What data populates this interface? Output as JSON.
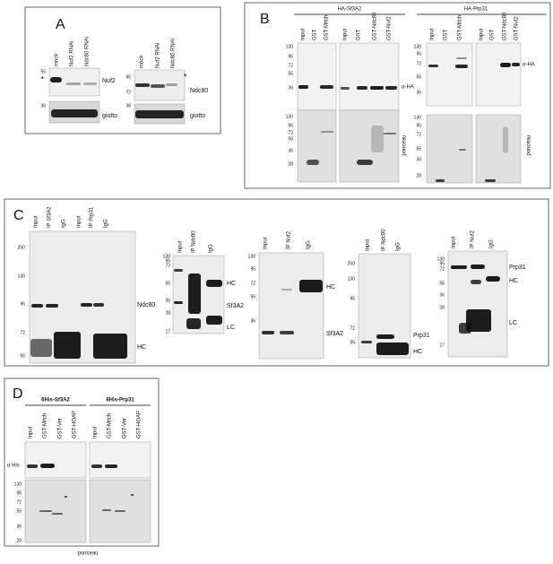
{
  "panels": [
    {
      "label": "A",
      "blots": [
        {
          "lanes": [
            "mock",
            "Nuf2 RNAi",
            "Ndc80 RNAi"
          ],
          "markers": [
            55,
            36
          ],
          "labels": [
            "Nuf2",
            "giotto",
            "*"
          ]
        },
        {
          "lanes": [
            "mock",
            "Nuf2 RNAi",
            "Ndc80 RNAi"
          ],
          "markers": [
            95,
            72,
            36
          ],
          "labels": [
            "Ndc80",
            "giotto",
            "*"
          ]
        }
      ]
    },
    {
      "label": "B",
      "groups": [
        {
          "header": "HA-Sf3A2",
          "lane_sets": [
            [
              "Input",
              "GST",
              "GST-Mitch"
            ],
            [
              "Input",
              "GST",
              "GST-Ndc80",
              "GST-Nuf2"
            ]
          ],
          "markers_top": [
            130,
            95,
            72,
            55,
            36
          ],
          "markers_bottom": [
            130,
            95,
            72,
            55,
            36,
            28
          ],
          "labels": [
            "α-HA",
            "ponceau"
          ]
        },
        {
          "header": "HA-Prp31",
          "lane_sets": [
            [
              "Input",
              "GST",
              "GST-Mitch"
            ],
            [
              "Input",
              "GST",
              "GST-Ndc80",
              "GST-Nuf2"
            ]
          ],
          "markers_top": [
            130,
            95,
            72,
            55,
            36
          ],
          "markers_bottom": [
            130,
            95,
            72,
            55,
            36,
            28
          ],
          "labels": [
            "α-HA",
            "ponceau"
          ]
        }
      ]
    },
    {
      "label": "C",
      "blots": [
        {
          "lanes": [
            "Input",
            "IP Sf3A2",
            "IgG",
            "Input",
            "IP Prp31",
            "IgG"
          ],
          "markers": [
            250,
            130,
            95,
            72,
            55
          ],
          "labels": [
            "Ndc80",
            "HC"
          ]
        },
        {
          "lanes": [
            "Input",
            "IP Ndc80",
            "IgG"
          ],
          "markers": [
            130,
            95,
            72,
            55,
            36,
            28,
            17
          ],
          "labels": [
            "HC",
            "Sf3A2",
            "LC"
          ]
        },
        {
          "lanes": [
            "Input",
            "IP Nuf2",
            "IgG"
          ],
          "markers": [
            130,
            95,
            72,
            55,
            36
          ],
          "labels": [
            "HC",
            "Sf3A2"
          ]
        },
        {
          "lanes": [
            "Input",
            "IP Ndc80",
            "IgG"
          ],
          "markers": [
            250,
            130,
            95,
            72,
            55
          ],
          "labels": [
            "Prp31",
            "HC"
          ]
        },
        {
          "lanes": [
            "Input",
            "IP Nuf2",
            "IgG"
          ],
          "markers": [
            130,
            95,
            72,
            55,
            36,
            28,
            17
          ],
          "labels": [
            "Prp31",
            "HC",
            "LC"
          ]
        }
      ]
    },
    {
      "label": "D",
      "groups": [
        {
          "header": "6His-Sf3A2",
          "lanes": [
            "Input",
            "GST-Mitch",
            "GST-Ver",
            "GST-HOAP"
          ]
        },
        {
          "header": "6His-Prp31",
          "lanes": [
            "Input",
            "GST-Mitch",
            "GST-Ver",
            "GST-HOAP"
          ]
        }
      ],
      "antibody": "α His",
      "markers": [
        130,
        95,
        72,
        55,
        36,
        28
      ],
      "caption": "ponceau"
    }
  ]
}
